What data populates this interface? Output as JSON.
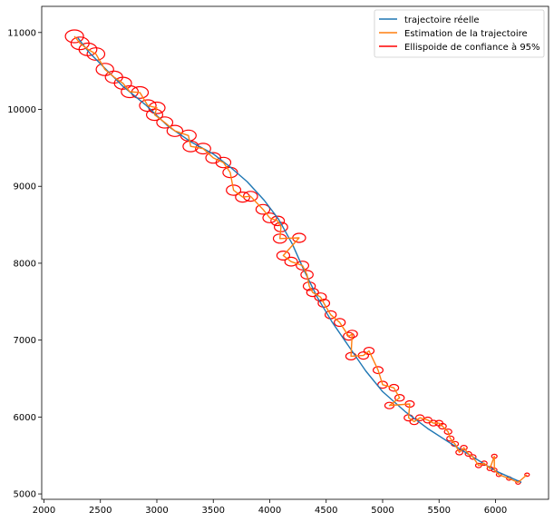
{
  "chart_data": {
    "type": "line",
    "xlim": [
      1980,
      6470
    ],
    "ylim": [
      4930,
      11340
    ],
    "xticks": [
      2000,
      2500,
      3000,
      3500,
      4000,
      4500,
      5000,
      5500,
      6000
    ],
    "yticks": [
      5000,
      6000,
      7000,
      8000,
      9000,
      10000,
      11000
    ],
    "grid": false,
    "legend_position": "top-right",
    "series": [
      {
        "name": "trajectoire réelle",
        "color": "#1f77b4",
        "points": [
          [
            6230,
            5150
          ],
          [
            6000,
            5300
          ],
          [
            5800,
            5480
          ],
          [
            5600,
            5660
          ],
          [
            5400,
            5850
          ],
          [
            5200,
            6070
          ],
          [
            5000,
            6330
          ],
          [
            4850,
            6600
          ],
          [
            4700,
            6920
          ],
          [
            4550,
            7240
          ],
          [
            4420,
            7560
          ],
          [
            4300,
            7920
          ],
          [
            4200,
            8250
          ],
          [
            4080,
            8570
          ],
          [
            3950,
            8820
          ],
          [
            3800,
            9060
          ],
          [
            3650,
            9250
          ],
          [
            3500,
            9420
          ],
          [
            3300,
            9580
          ],
          [
            3100,
            9780
          ],
          [
            2900,
            10060
          ],
          [
            2700,
            10300
          ],
          [
            2550,
            10520
          ],
          [
            2400,
            10740
          ],
          [
            2300,
            10930
          ]
        ]
      },
      {
        "name": "Estimation de la trajectoire",
        "color": "#ff7f0e",
        "points": [
          [
            6280,
            5250
          ],
          [
            6200,
            5150
          ],
          [
            6120,
            5200
          ],
          [
            6030,
            5250
          ],
          [
            5990,
            5310
          ],
          [
            5990,
            5490
          ],
          [
            5950,
            5330
          ],
          [
            5900,
            5400
          ],
          [
            5850,
            5370
          ],
          [
            5800,
            5480
          ],
          [
            5760,
            5520
          ],
          [
            5720,
            5600
          ],
          [
            5680,
            5540
          ],
          [
            5640,
            5650
          ],
          [
            5600,
            5720
          ],
          [
            5580,
            5810
          ],
          [
            5530,
            5880
          ],
          [
            5500,
            5920
          ],
          [
            5450,
            5920
          ],
          [
            5400,
            5960
          ],
          [
            5330,
            5990
          ],
          [
            5280,
            5940
          ],
          [
            5230,
            5990
          ],
          [
            5240,
            6170
          ],
          [
            5060,
            6150
          ],
          [
            5150,
            6250
          ],
          [
            5100,
            6380
          ],
          [
            5000,
            6420
          ],
          [
            4960,
            6610
          ],
          [
            4880,
            6860
          ],
          [
            4830,
            6800
          ],
          [
            4720,
            6790
          ],
          [
            4730,
            7080
          ],
          [
            4700,
            7050
          ],
          [
            4620,
            7230
          ],
          [
            4540,
            7330
          ],
          [
            4480,
            7480
          ],
          [
            4450,
            7560
          ],
          [
            4380,
            7620
          ],
          [
            4350,
            7700
          ],
          [
            4330,
            7850
          ],
          [
            4290,
            7970
          ],
          [
            4190,
            8020
          ],
          [
            4120,
            8100
          ],
          [
            4260,
            8330
          ],
          [
            4090,
            8320
          ],
          [
            4100,
            8470
          ],
          [
            4070,
            8550
          ],
          [
            4000,
            8590
          ],
          [
            3940,
            8700
          ],
          [
            3830,
            8870
          ],
          [
            3760,
            8860
          ],
          [
            3680,
            8950
          ],
          [
            3650,
            9180
          ],
          [
            3590,
            9310
          ],
          [
            3500,
            9370
          ],
          [
            3410,
            9490
          ],
          [
            3300,
            9520
          ],
          [
            3280,
            9660
          ],
          [
            3160,
            9720
          ],
          [
            3070,
            9830
          ],
          [
            2980,
            9930
          ],
          [
            3000,
            10020
          ],
          [
            2920,
            10050
          ],
          [
            2850,
            10220
          ],
          [
            2760,
            10230
          ],
          [
            2700,
            10340
          ],
          [
            2620,
            10420
          ],
          [
            2540,
            10520
          ],
          [
            2460,
            10720
          ],
          [
            2390,
            10780
          ],
          [
            2320,
            10860
          ],
          [
            2270,
            10950
          ]
        ]
      }
    ]
  },
  "legend": {
    "items": [
      {
        "label": "trajectoire réelle",
        "color": "#1f77b4"
      },
      {
        "label": "Estimation de la trajectoire",
        "color": "#ff7f0e"
      },
      {
        "label": "Ellispoide de confiance à 95%",
        "color": "#ff0000"
      }
    ]
  }
}
